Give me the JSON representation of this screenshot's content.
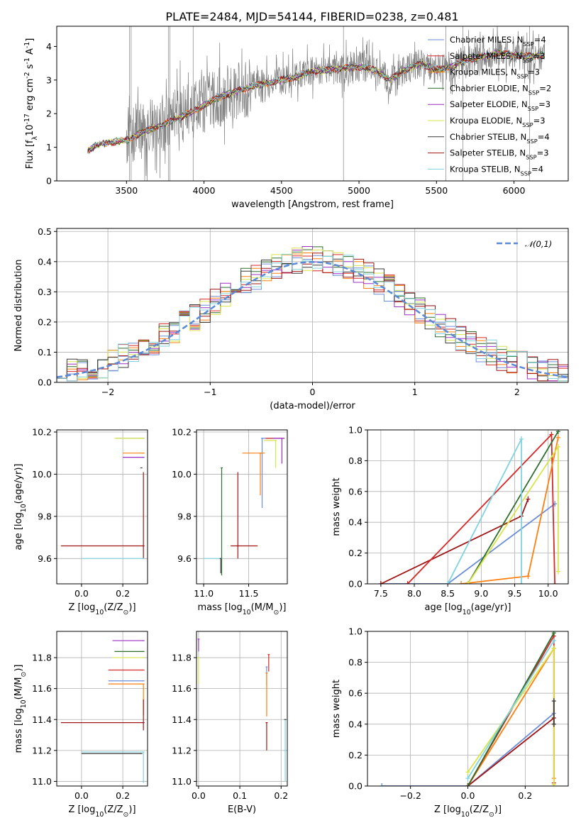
{
  "figure": {
    "title": "PLATE=2484, MJD=54144, FIBERID=0238, z=0.481"
  },
  "colors": {
    "series": [
      "#6b8ed6",
      "#d62728",
      "#ff7f0e",
      "#2f6e2f",
      "#9b2fc4",
      "#d7e44a",
      "#3a3a3a",
      "#a01515",
      "#7fd3de"
    ],
    "data": "#808080",
    "gauss": "#5b8ad6"
  },
  "chart_data": [
    {
      "id": "spectrum",
      "type": "line",
      "xlabel": "wavelength [Angstrom, rest frame]",
      "ylabel": "Flux [f$_\\lambda$10$^{-17}$ erg cm$^{-2}$ s$^{-1}$ A$^{-1}$]",
      "xlim": [
        3050,
        6350
      ],
      "ylim": [
        0,
        4.6
      ],
      "xticks": [
        3500,
        4000,
        4500,
        5000,
        5500,
        6000
      ],
      "yticks": [
        0,
        1,
        2,
        3,
        4
      ],
      "grid": false,
      "legend_position": "top-right",
      "continuum_knots": {
        "x": [
          3250,
          3300,
          3400,
          3500,
          3600,
          3700,
          3800,
          3900,
          4000,
          4100,
          4200,
          4300,
          4400,
          4500,
          4600,
          4700,
          4800,
          4900,
          5000,
          5100,
          5200,
          5300,
          5400,
          5500,
          5600,
          5700,
          5800,
          5900,
          6000,
          6100,
          6200
        ],
        "y": [
          0.9,
          1.05,
          1.15,
          1.2,
          1.45,
          1.6,
          1.8,
          2.0,
          2.25,
          2.5,
          2.65,
          2.8,
          2.9,
          3.0,
          3.1,
          3.25,
          3.3,
          3.35,
          3.4,
          3.3,
          3.0,
          3.3,
          3.5,
          3.3,
          3.4,
          3.6,
          3.7,
          3.8,
          3.75,
          3.7,
          3.75
        ]
      },
      "series": [
        {
          "name": "Chabrier MILES, N$_{SSP}$=4"
        },
        {
          "name": "Salpeter MILES, N$_{SSP}$=3"
        },
        {
          "name": "Kroupa MILES, N$_{SSP}$=3"
        },
        {
          "name": "Chabrier ELODIE, N$_{SSP}$=2"
        },
        {
          "name": "Salpeter ELODIE, N$_{SSP}$=3"
        },
        {
          "name": "Kroupa ELODIE, N$_{SSP}$=3"
        },
        {
          "name": "Chabrier STELIB, N$_{SSP}$=4"
        },
        {
          "name": "Salpeter STELIB, N$_{SSP}$=3"
        },
        {
          "name": "Kroupa STELIB, N$_{SSP}$=4"
        }
      ]
    },
    {
      "id": "residuals",
      "type": "line",
      "xlabel": "(data-model)/error",
      "ylabel": "Normed distribution",
      "xlim": [
        -2.5,
        2.5
      ],
      "ylim": [
        0,
        0.51
      ],
      "xticks": [
        -2,
        -1,
        0,
        1,
        2
      ],
      "yticks": [
        0.0,
        0.1,
        0.2,
        0.3,
        0.4,
        0.5
      ],
      "grid": true,
      "legend_position": "top-right",
      "gauss_label": "$\\mathcal{N}(0,1)$",
      "bin_width": 0.1,
      "bin_start": -2.5
    },
    {
      "id": "age-vs-Z",
      "type": "scatter",
      "xlabel": "Z [log$_{10}$(Z/Z$_\\odot$)]",
      "ylabel": "age  [log$_{10}$(age/yr)]",
      "xlim": [
        -0.12,
        0.32
      ],
      "ylim": [
        9.48,
        10.21
      ],
      "xticks": [
        0.0,
        0.2
      ],
      "yticks": [
        9.6,
        9.8,
        10.0,
        10.2
      ],
      "grid": true,
      "points": [
        {
          "series": 0,
          "x": 0.3,
          "y": 10.17,
          "xerr": [
            0.13,
            0.0
          ],
          "yerr": [
            0.0,
            0.0
          ]
        },
        {
          "series": 2,
          "x": 0.3,
          "y": 10.1,
          "xerr": [
            0.1,
            0.0
          ],
          "yerr": [
            0.0,
            0.0
          ]
        },
        {
          "series": 4,
          "x": 0.3,
          "y": 10.08,
          "xerr": [
            0.1,
            0.0
          ],
          "yerr": [
            0.0,
            0.0
          ]
        },
        {
          "series": 5,
          "x": 0.3,
          "y": 10.17,
          "xerr": [
            0.14,
            0.0
          ],
          "yerr": [
            0.0,
            0.0
          ]
        },
        {
          "series": 6,
          "x": 0.29,
          "y": 10.03,
          "xerr": [
            0.0,
            0.0
          ],
          "yerr": [
            0.0,
            0.0
          ]
        },
        {
          "series": 7,
          "x": 0.3,
          "y": 9.66,
          "xerr": [
            0.4,
            0.0
          ],
          "yerr": [
            0.06,
            0.35
          ]
        },
        {
          "series": 8,
          "x": 0.3,
          "y": 9.6,
          "xerr": [
            0.3,
            0.0
          ],
          "yerr": [
            0.0,
            0.0
          ]
        }
      ]
    },
    {
      "id": "age-vs-mass",
      "type": "scatter",
      "xlabel": "mass [log$_{10}$(M/M$_\\odot$)]",
      "ylabel": "",
      "xlim": [
        10.92,
        11.93
      ],
      "ylim": [
        9.48,
        10.21
      ],
      "xticks": [
        11.0,
        11.5
      ],
      "yticks": [
        9.6,
        9.8,
        10.0,
        10.2
      ],
      "grid": true,
      "points": [
        {
          "series": 0,
          "x": 11.65,
          "y": 10.17,
          "xerr": [
            0.0,
            0.2
          ],
          "yerr": [
            0.33,
            0.0
          ]
        },
        {
          "series": 1,
          "x": 11.7,
          "y": 10.17,
          "xerr": [
            0.0,
            0.2
          ],
          "yerr": [
            0.0,
            0.0
          ]
        },
        {
          "series": 2,
          "x": 11.63,
          "y": 10.1,
          "xerr": [
            0.2,
            0.05
          ],
          "yerr": [
            0.2,
            0.0
          ]
        },
        {
          "series": 4,
          "x": 11.87,
          "y": 10.17,
          "xerr": [
            0.1,
            0.02
          ],
          "yerr": [
            0.12,
            0.0
          ]
        },
        {
          "series": 5,
          "x": 11.8,
          "y": 10.16,
          "xerr": [
            0.13,
            0.0
          ],
          "yerr": [
            0.13,
            0.0
          ]
        },
        {
          "series": 3,
          "x": 11.2,
          "y": 10.03,
          "xerr": [
            0.0,
            0.0
          ],
          "yerr": [
            0.51,
            0.0
          ]
        },
        {
          "series": 7,
          "x": 11.38,
          "y": 9.66,
          "xerr": [
            0.08,
            0.22
          ],
          "yerr": [
            0.06,
            0.35
          ]
        },
        {
          "series": 8,
          "x": 11.2,
          "y": 9.6,
          "xerr": [
            0.2,
            0.0
          ],
          "yerr": [
            0.0,
            0.0
          ]
        },
        {
          "series": 6,
          "x": 11.19,
          "y": 9.6,
          "xerr": [
            0.0,
            0.0
          ],
          "yerr": [
            0.07,
            0.0
          ]
        }
      ]
    },
    {
      "id": "weight-vs-age",
      "type": "line",
      "xlabel": "age  [log$_{10}$(age/yr)]",
      "ylabel": "mass weight",
      "xlim": [
        7.3,
        10.3
      ],
      "ylim": [
        0,
        1.0
      ],
      "xticks": [
        7.5,
        8.0,
        8.5,
        9.0,
        9.5,
        10.0
      ],
      "yticks": [
        0.0,
        0.2,
        0.4,
        0.6,
        0.8,
        1.0
      ],
      "grid": true,
      "series": [
        {
          "series": 0,
          "x": [
            7.5,
            8.5,
            10.1
          ],
          "y": [
            0.0,
            0.0,
            0.52
          ]
        },
        {
          "series": 7,
          "x": [
            7.5,
            9.6,
            9.7
          ],
          "y": [
            0.0,
            0.44,
            0.55
          ]
        },
        {
          "series": 1,
          "x": [
            7.9,
            10.05,
            10.1
          ],
          "y": [
            0.0,
            0.97,
            0.0
          ]
        },
        {
          "series": 2,
          "x": [
            8.7,
            9.7,
            10.15
          ],
          "y": [
            0.0,
            0.05,
            0.95
          ]
        },
        {
          "series": 3,
          "x": [
            8.8,
            10.15
          ],
          "y": [
            0.0,
            0.99
          ]
        },
        {
          "series": 5,
          "x": [
            8.8,
            10.15,
            10.15
          ],
          "y": [
            0.0,
            0.89,
            0.08
          ]
        },
        {
          "series": 8,
          "x": [
            8.5,
            9.6,
            9.6
          ],
          "y": [
            0.0,
            0.94,
            0.0
          ]
        }
      ]
    },
    {
      "id": "mass-vs-Z",
      "type": "scatter",
      "xlabel": "Z [log$_{10}$(Z/Z$_\\odot$)]",
      "ylabel": "mass [log$_{10}$(M/M$_\\odot$)]",
      "xlim": [
        -0.12,
        0.32
      ],
      "ylim": [
        10.97,
        11.97
      ],
      "xticks": [
        0.0,
        0.2
      ],
      "yticks": [
        11.0,
        11.2,
        11.4,
        11.6,
        11.8
      ],
      "grid": true,
      "points": [
        {
          "series": 4,
          "x": 0.3,
          "y": 11.91,
          "xerr": [
            0.15,
            0.0
          ],
          "yerr": [
            0.0,
            0.0
          ]
        },
        {
          "series": 3,
          "x": 0.3,
          "y": 11.84,
          "xerr": [
            0.14,
            0.0
          ],
          "yerr": [
            0.0,
            0.0
          ]
        },
        {
          "series": 5,
          "x": 0.3,
          "y": 11.8,
          "xerr": [
            0.15,
            0.0
          ],
          "yerr": [
            0.0,
            0.0
          ]
        },
        {
          "series": 1,
          "x": 0.3,
          "y": 11.72,
          "xerr": [
            0.17,
            0.0
          ],
          "yerr": [
            0.0,
            0.0
          ]
        },
        {
          "series": 0,
          "x": 0.3,
          "y": 11.65,
          "xerr": [
            0.17,
            0.0
          ],
          "yerr": [
            0.0,
            0.0
          ]
        },
        {
          "series": 2,
          "x": 0.3,
          "y": 11.63,
          "xerr": [
            0.17,
            0.0
          ],
          "yerr": [
            0.2,
            0.0
          ]
        },
        {
          "series": 7,
          "x": 0.3,
          "y": 11.38,
          "xerr": [
            0.4,
            0.0
          ],
          "yerr": [
            0.05,
            0.15
          ]
        },
        {
          "series": 8,
          "x": 0.3,
          "y": 11.19,
          "xerr": [
            0.3,
            0.0
          ],
          "yerr": [
            0.2,
            0.0
          ]
        },
        {
          "series": 6,
          "x": 0.29,
          "y": 11.18,
          "xerr": [
            0.29,
            0.0
          ],
          "yerr": [
            0.0,
            0.0
          ]
        }
      ]
    },
    {
      "id": "mass-vs-ebv",
      "type": "scatter",
      "xlabel": "E(B-V)",
      "ylabel": "",
      "xlim": [
        -0.005,
        0.215
      ],
      "ylim": [
        10.97,
        11.97
      ],
      "xticks": [
        0.0,
        0.1,
        0.2
      ],
      "yticks": [
        11.0,
        11.2,
        11.4,
        11.6,
        11.8
      ],
      "grid": true,
      "points": [
        {
          "series": 4,
          "x": 0.0,
          "y": 11.92,
          "xerr": [
            0.0,
            0.0
          ],
          "yerr": [
            0.08,
            0.0
          ]
        },
        {
          "series": 5,
          "x": 0.0,
          "y": 11.8,
          "xerr": [
            0.0,
            0.0
          ],
          "yerr": [
            0.17,
            0.0
          ]
        },
        {
          "series": 1,
          "x": 0.17,
          "y": 11.82,
          "xerr": [
            0.0,
            0.0
          ],
          "yerr": [
            0.11,
            0.0
          ]
        },
        {
          "series": 0,
          "x": 0.165,
          "y": 11.74,
          "xerr": [
            0.0,
            0.0
          ],
          "yerr": [
            0.12,
            0.0
          ]
        },
        {
          "series": 2,
          "x": 0.165,
          "y": 11.7,
          "xerr": [
            0.0,
            0.0
          ],
          "yerr": [
            0.28,
            0.0
          ]
        },
        {
          "series": 7,
          "x": 0.165,
          "y": 11.38,
          "xerr": [
            0.0,
            0.0
          ],
          "yerr": [
            0.18,
            0.0
          ]
        },
        {
          "series": 8,
          "x": 0.21,
          "y": 11.2,
          "xerr": [
            0.0,
            0.0
          ],
          "yerr": [
            0.2,
            0.2
          ]
        },
        {
          "series": 6,
          "x": 0.21,
          "y": 11.4,
          "xerr": [
            0.0,
            0.0
          ],
          "yerr": [
            0.0,
            0.0
          ]
        }
      ]
    },
    {
      "id": "weight-vs-Z",
      "type": "line",
      "xlabel": "Z [log$_{10}$(Z/Z$_\\odot$)]",
      "ylabel": "mass weight",
      "xlim": [
        -0.35,
        0.35
      ],
      "ylim": [
        0,
        1.0
      ],
      "xticks": [
        -0.2,
        0.0,
        0.2
      ],
      "yticks": [
        0.0,
        0.2,
        0.4,
        0.6,
        0.8,
        1.0
      ],
      "grid": true,
      "series": [
        {
          "series": 0,
          "x": [
            -0.3,
            0.0,
            0.3
          ],
          "y": [
            0.0,
            0.0,
            0.47
          ]
        },
        {
          "series": 7,
          "x": [
            0.0,
            0.3
          ],
          "y": [
            0.0,
            0.44
          ]
        },
        {
          "series": 2,
          "x": [
            0.0,
            0.3,
            0.3
          ],
          "y": [
            0.0,
            0.89,
            0.05
          ]
        },
        {
          "series": 1,
          "x": [
            0.0,
            0.3,
            0.3
          ],
          "y": [
            0.0,
            0.97,
            0.02
          ]
        },
        {
          "series": 3,
          "x": [
            0.0,
            0.3
          ],
          "y": [
            0.0,
            0.99
          ]
        },
        {
          "series": 5,
          "x": [
            0.0,
            0.3,
            0.3
          ],
          "y": [
            0.09,
            0.89,
            0.01
          ]
        },
        {
          "series": 8,
          "x": [
            0.0,
            0.3
          ],
          "y": [
            0.05,
            0.94
          ]
        },
        {
          "series": 6,
          "x": [
            0.3,
            0.3
          ],
          "y": [
            0.55,
            0.4
          ]
        }
      ]
    }
  ]
}
